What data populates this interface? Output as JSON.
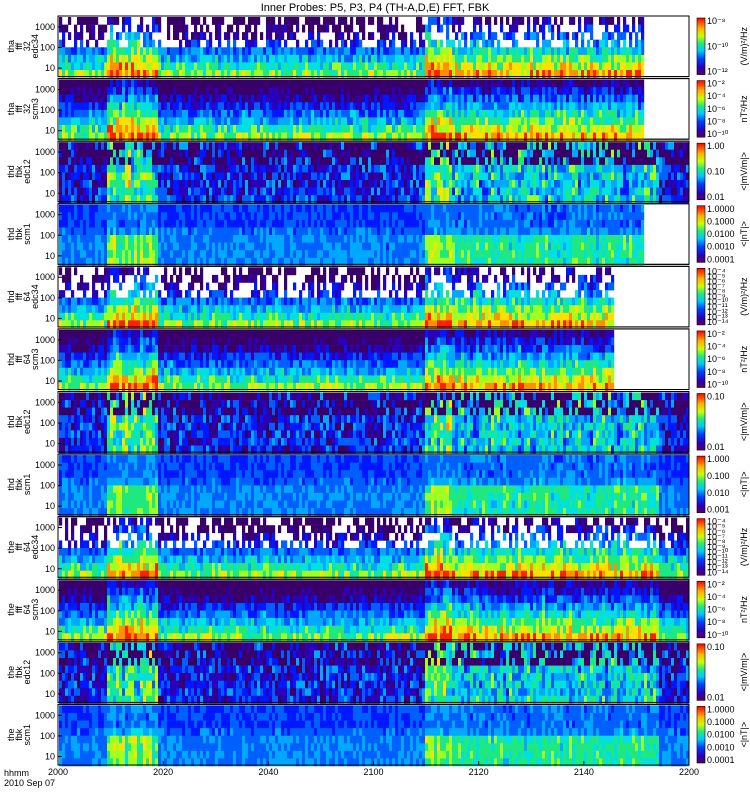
{
  "chart_data": {
    "type": "heatmap",
    "title": "Inner Probes: P5, P3, P4 (TH-A,D,E) FFT, FBK",
    "x_ticks": [
      "2000",
      "2020",
      "2040",
      "2100",
      "2120",
      "2140",
      "2200"
    ],
    "x_time_label": "hhmm",
    "x_date_label": "2010 Sep 07",
    "panels": [
      {
        "probe": "tha",
        "label": [
          "tha",
          "fff",
          "32",
          "edc34"
        ],
        "y_ticks": [
          "1000",
          "100",
          "10"
        ],
        "cbar_label": "(V/m)²/Hz",
        "cbar_ticks": [
          "10⁻⁸",
          "10⁻¹⁰",
          "10⁻¹²"
        ],
        "cbar_reversed": false,
        "kind": "fft_e",
        "data_end_fraction": 0.93
      },
      {
        "probe": "tha",
        "label": [
          "tha",
          "fff",
          "32",
          "scm3"
        ],
        "y_ticks": [
          "1000",
          "100",
          "10"
        ],
        "cbar_label": "nT²/Hz",
        "cbar_ticks": [
          "10⁻²",
          "10⁻⁴",
          "10⁻⁶",
          "10⁻⁸",
          "10⁻¹⁰"
        ],
        "cbar_reversed": false,
        "kind": "fft_b",
        "data_end_fraction": 0.93
      },
      {
        "probe": "thd",
        "label": [
          "thd",
          "fbk",
          "edc12"
        ],
        "y_ticks": [
          "1000",
          "100",
          "10"
        ],
        "cbar_label": "<|mV/m|>",
        "cbar_ticks": [
          "1.00",
          "0.10",
          "0.01"
        ],
        "cbar_reversed": false,
        "kind": "fbk_e",
        "data_end_fraction": 1.0
      },
      {
        "probe": "thd",
        "label": [
          "thd",
          "fbk",
          "scm1"
        ],
        "y_ticks": [
          "1000",
          "100",
          "10"
        ],
        "cbar_label": "<|nT|>",
        "cbar_ticks": [
          "1.0000",
          "0.1000",
          "0.0100",
          "0.0010",
          "0.0001"
        ],
        "cbar_reversed": false,
        "kind": "fbk_b",
        "data_end_fraction": 0.93
      },
      {
        "probe": "thd",
        "label": [
          "thd",
          "fff",
          "64",
          "edc34"
        ],
        "y_ticks": [
          "1000",
          "100",
          "10"
        ],
        "cbar_label": "(V/m)²/Hz",
        "cbar_ticks": [
          "10⁻⁴",
          "10⁻⁵",
          "10⁻⁶",
          "10⁻⁷",
          "10⁻⁸",
          "10⁻⁹",
          "10⁻¹⁰",
          "10⁻¹¹",
          "10⁻¹²",
          "10⁻¹³",
          "10⁻¹⁴"
        ],
        "cbar_reversed": false,
        "kind": "fft_e",
        "data_end_fraction": 0.88
      },
      {
        "probe": "thd",
        "label": [
          "thd",
          "fff",
          "64",
          "scm3"
        ],
        "y_ticks": [
          "1000",
          "100",
          "10"
        ],
        "cbar_label": "nT²/Hz",
        "cbar_ticks": [
          "10⁻²",
          "10⁻⁴",
          "10⁻⁶",
          "10⁻⁸",
          "10⁻¹⁰"
        ],
        "cbar_reversed": false,
        "kind": "fft_b",
        "data_end_fraction": 0.88
      },
      {
        "probe": "thd",
        "label": [
          "thd",
          "fbk",
          "edc12"
        ],
        "y_ticks": [
          "1000",
          "100",
          "10"
        ],
        "cbar_label": "<|mV/m|>",
        "cbar_ticks": [
          "0.10",
          "0.01"
        ],
        "cbar_reversed": false,
        "kind": "fbk_e",
        "data_end_fraction": 1.0
      },
      {
        "probe": "thd",
        "label": [
          "thd",
          "fbk",
          "scm1"
        ],
        "y_ticks": [
          "1000",
          "100",
          "10"
        ],
        "cbar_label": "<|nT|>",
        "cbar_ticks": [
          "1.000",
          "0.100",
          "0.010",
          "0.001"
        ],
        "cbar_reversed": false,
        "kind": "fbk_b",
        "data_end_fraction": 1.0
      },
      {
        "probe": "the",
        "label": [
          "the",
          "fff",
          "64",
          "edc34"
        ],
        "y_ticks": [
          "1000",
          "100",
          "10"
        ],
        "cbar_label": "(V/m)²/Hz",
        "cbar_ticks": [
          "10⁻⁴",
          "10⁻⁵",
          "10⁻⁶",
          "10⁻⁷",
          "10⁻⁸",
          "10⁻⁹",
          "10⁻¹⁰",
          "10⁻¹¹",
          "10⁻¹²",
          "10⁻¹³",
          "10⁻¹⁴"
        ],
        "cbar_reversed": false,
        "kind": "fft_e",
        "data_end_fraction": 1.0
      },
      {
        "probe": "the",
        "label": [
          "the",
          "fff",
          "64",
          "scm3"
        ],
        "y_ticks": [
          "1000",
          "100",
          "10"
        ],
        "cbar_label": "nT²/Hz",
        "cbar_ticks": [
          "10⁻²",
          "10⁻⁴",
          "10⁻⁶",
          "10⁻⁸",
          "10⁻¹⁰"
        ],
        "cbar_reversed": false,
        "kind": "fft_b",
        "data_end_fraction": 1.0
      },
      {
        "probe": "the",
        "label": [
          "the",
          "fbk",
          "edc12"
        ],
        "y_ticks": [
          "1000",
          "100",
          "10"
        ],
        "cbar_label": "<|mV/m|>",
        "cbar_ticks": [
          "0.10",
          "0.01"
        ],
        "cbar_reversed": false,
        "kind": "fbk_e",
        "data_end_fraction": 1.0
      },
      {
        "probe": "the",
        "label": [
          "the",
          "fbk",
          "scm1"
        ],
        "y_ticks": [
          "1000",
          "100",
          "10"
        ],
        "cbar_label": "<|nT|>",
        "cbar_ticks": [
          "1.0000",
          "0.1000",
          "0.0100",
          "0.0010",
          "0.0001"
        ],
        "cbar_reversed": false,
        "kind": "fbk_b",
        "data_end_fraction": 1.0
      }
    ]
  }
}
